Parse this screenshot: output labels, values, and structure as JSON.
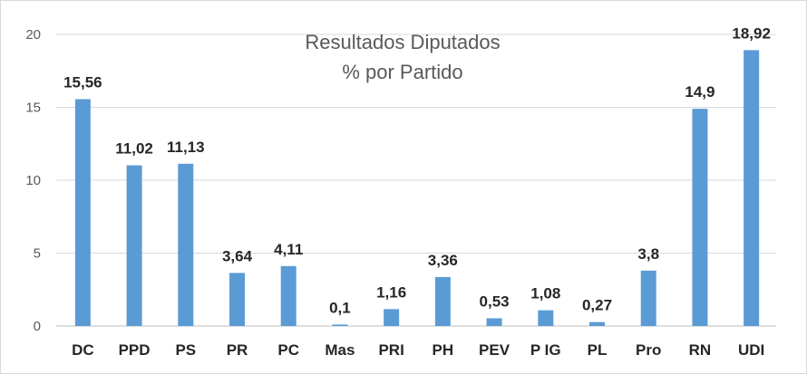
{
  "chart_data": {
    "type": "bar",
    "title": [
      "Resultados Diputados",
      "% por Partido"
    ],
    "categories": [
      "DC",
      "PPD",
      "PS",
      "PR",
      "PC",
      "Mas",
      "PRI",
      "PH",
      "PEV",
      "P IG",
      "PL",
      "Pro",
      "RN",
      "UDI"
    ],
    "values": [
      15.56,
      11.02,
      11.13,
      3.64,
      4.11,
      0.1,
      1.16,
      3.36,
      0.53,
      1.08,
      0.27,
      3.8,
      14.9,
      18.92
    ],
    "value_labels": [
      "15,56",
      "11,02",
      "11,13",
      "3,64",
      "4,11",
      "0,1",
      "1,16",
      "3,36",
      "0,53",
      "1,08",
      "0,27",
      "3,8",
      "14,9",
      "18,92"
    ],
    "yticks": [
      0,
      5,
      10,
      15,
      20
    ],
    "ylim": [
      0,
      20
    ],
    "xlabel": "",
    "ylabel": "",
    "grid": true,
    "legend": "none",
    "colors": {
      "bar": "#5b9bd5",
      "grid": "#d9d9d9",
      "axis": "#bfbfbf"
    }
  }
}
